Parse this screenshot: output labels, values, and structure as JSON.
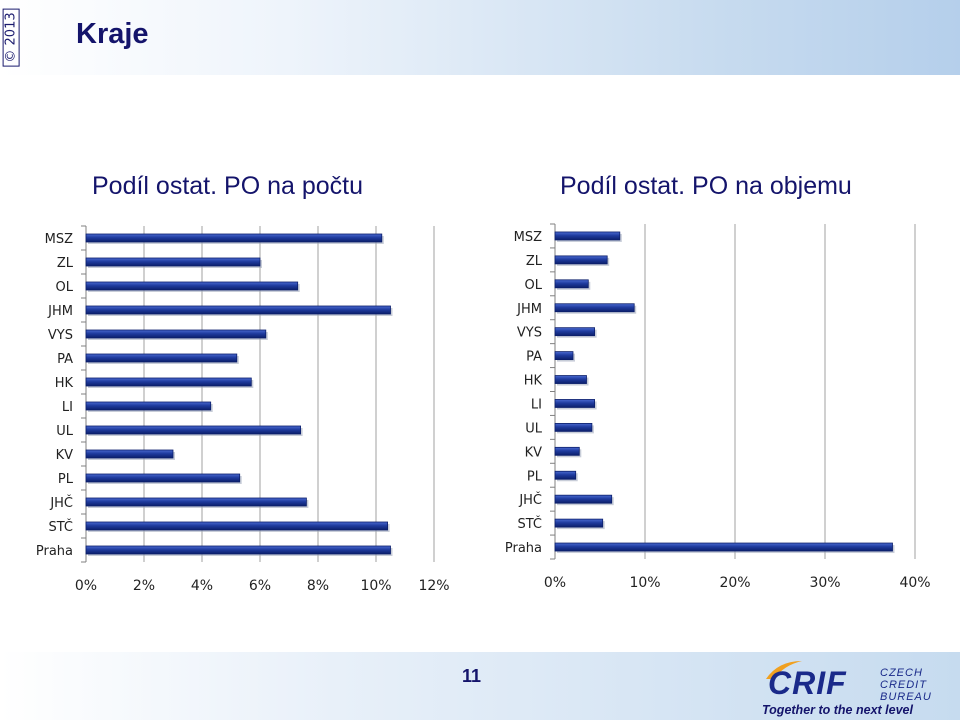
{
  "header": {
    "copyright": "© 2013",
    "title": "Kraje"
  },
  "page_number": "11",
  "logo": {
    "brand": "CRIF",
    "sub_lines": [
      "CZECH",
      "CREDIT",
      "BUREAU"
    ],
    "slogan": "Together to the next level"
  },
  "colors": {
    "bar": "#1f3b9e",
    "bar_light": "#4a6ad0",
    "grid": "#a0a0a0",
    "text": "#14146b",
    "axis_text": "#222222"
  },
  "chart_data": [
    {
      "type": "bar",
      "orientation": "horizontal",
      "title": "Podíl ostat. PO na počtu",
      "categories": [
        "MSZ",
        "ZL",
        "OL",
        "JHM",
        "VYS",
        "PA",
        "HK",
        "LI",
        "UL",
        "KV",
        "PL",
        "JHČ",
        "STČ",
        "Praha"
      ],
      "values": [
        10.2,
        6.0,
        7.3,
        10.5,
        6.2,
        5.2,
        5.7,
        4.3,
        7.4,
        3.0,
        5.3,
        7.6,
        10.4,
        10.5
      ],
      "xlim": [
        0,
        12
      ],
      "xticks": [
        "0%",
        "2%",
        "4%",
        "6%",
        "8%",
        "10%",
        "12%"
      ],
      "xlabel": "",
      "ylabel": "",
      "grid": true,
      "legend": "none"
    },
    {
      "type": "bar",
      "orientation": "horizontal",
      "title": "Podíl ostat. PO na objemu",
      "categories": [
        "MSZ",
        "ZL",
        "OL",
        "JHM",
        "VYS",
        "PA",
        "HK",
        "LI",
        "UL",
        "KV",
        "PL",
        "JHČ",
        "STČ",
        "Praha"
      ],
      "values": [
        7.2,
        5.8,
        3.7,
        8.8,
        4.4,
        2.0,
        3.5,
        4.4,
        4.1,
        2.7,
        2.3,
        6.3,
        5.3,
        37.5
      ],
      "xlim": [
        0,
        40
      ],
      "xticks": [
        "0%",
        "10%",
        "20%",
        "30%",
        "40%"
      ],
      "xlabel": "",
      "ylabel": "",
      "grid": true,
      "legend": "none"
    }
  ]
}
